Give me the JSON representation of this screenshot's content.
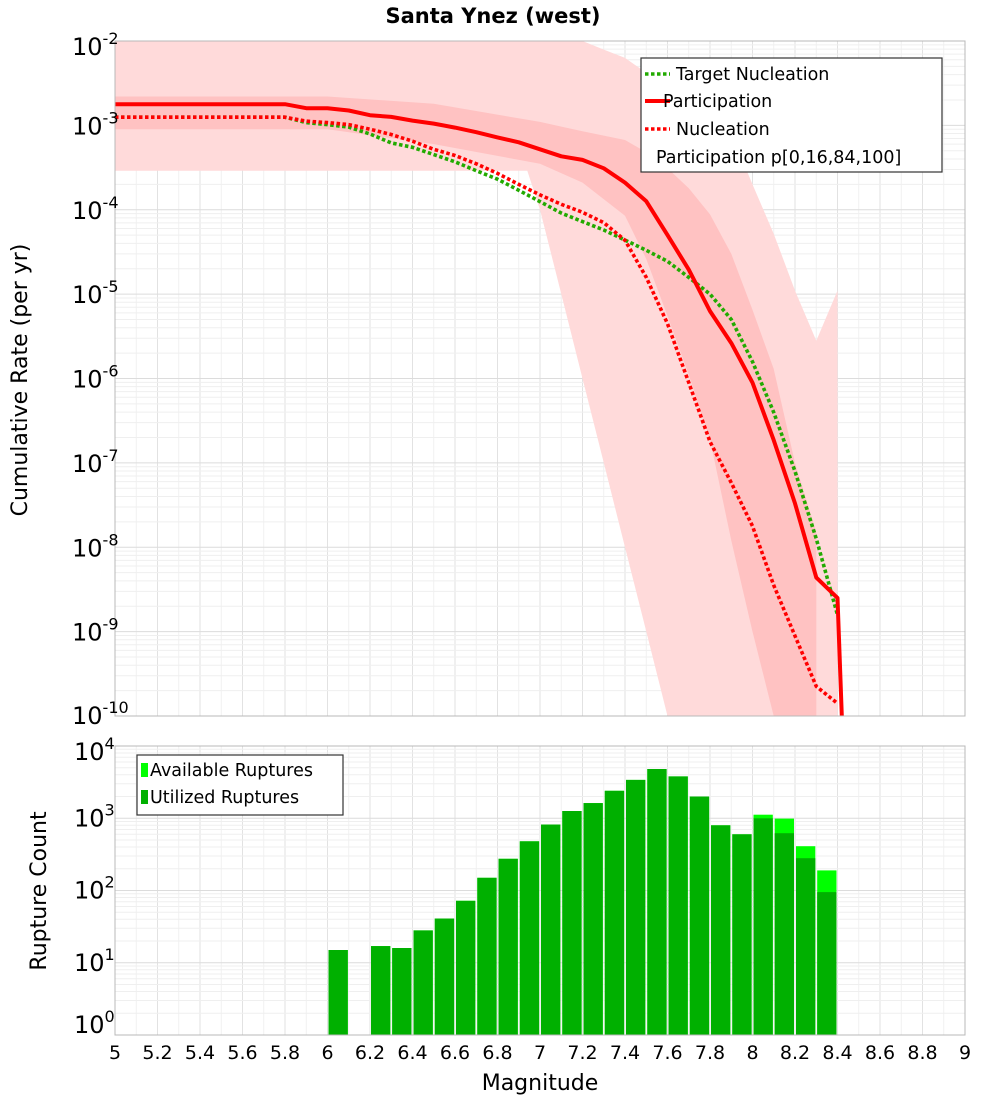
{
  "chart_data": [
    {
      "type": "line",
      "title": "Santa Ynez (west)",
      "xlabel": "",
      "ylabel": "Cumulative Rate (per yr)",
      "xlim": [
        5,
        9
      ],
      "ylim": [
        1e-10,
        0.01
      ],
      "yscale": "log",
      "grid": true,
      "legend_position": "top-right",
      "y_tick_labels": [
        {
          "base": "10",
          "exp": "-2",
          "value": 0.01
        },
        {
          "base": "10",
          "exp": "-3",
          "value": 0.001
        },
        {
          "base": "10",
          "exp": "-4",
          "value": 0.0001
        },
        {
          "base": "10",
          "exp": "-5",
          "value": 1e-05
        },
        {
          "base": "10",
          "exp": "-6",
          "value": 1e-06
        },
        {
          "base": "10",
          "exp": "-7",
          "value": 1e-07
        },
        {
          "base": "10",
          "exp": "-8",
          "value": 1e-08
        },
        {
          "base": "10",
          "exp": "-9",
          "value": 1e-09
        },
        {
          "base": "10",
          "exp": "-10",
          "value": 1e-10
        }
      ],
      "series": [
        {
          "name": "Target Nucleation",
          "color": "#22aa00",
          "style": "dotted",
          "x": [
            5.0,
            5.5,
            5.8,
            5.9,
            6.0,
            6.1,
            6.2,
            6.3,
            6.4,
            6.5,
            6.6,
            6.7,
            6.8,
            6.9,
            7.0,
            7.1,
            7.2,
            7.3,
            7.4,
            7.5,
            7.6,
            7.7,
            7.8,
            7.9,
            8.0,
            8.1,
            8.2,
            8.3,
            8.4
          ],
          "y": [
            0.00125,
            0.00125,
            0.00125,
            0.00108,
            0.00102,
            0.000955,
            0.00079,
            0.00062,
            0.00055,
            0.00045,
            0.00037,
            0.00029,
            0.00023,
            0.00017,
            0.000125,
            9.12e-05,
            7.24e-05,
            5.75e-05,
            4.37e-05,
            3.31e-05,
            2.45e-05,
            1.58e-05,
            1e-05,
            5.01e-06,
            1.58e-06,
            3.98e-07,
            7.94e-08,
            1.26e-08,
            1.58e-09
          ]
        },
        {
          "name": "Participation",
          "color": "#ff0000",
          "style": "solid",
          "x": [
            5.0,
            5.5,
            5.8,
            5.9,
            6.0,
            6.1,
            6.2,
            6.3,
            6.4,
            6.5,
            6.6,
            6.7,
            6.8,
            6.9,
            7.0,
            7.1,
            7.2,
            7.3,
            7.4,
            7.5,
            7.6,
            7.7,
            7.8,
            7.9,
            8.0,
            8.1,
            8.2,
            8.3,
            8.4,
            8.42
          ],
          "y": [
            0.00178,
            0.00178,
            0.00178,
            0.0016,
            0.0016,
            0.0015,
            0.00132,
            0.00126,
            0.00114,
            0.00105,
            0.00094,
            0.00083,
            0.00072,
            0.00063,
            0.00052,
            0.00043,
            0.00039,
            0.00031,
            0.00021,
            0.000126,
            5e-05,
            1.95e-05,
            6.3e-06,
            2.63e-06,
            8.91e-07,
            1.86e-07,
            3.31e-08,
            4.37e-09,
            2.51e-09,
            1e-10
          ]
        },
        {
          "name": "Nucleation",
          "color": "#ff0000",
          "style": "dotted",
          "x": [
            5.0,
            5.5,
            5.8,
            5.9,
            6.0,
            6.1,
            6.2,
            6.3,
            6.4,
            6.5,
            6.6,
            6.7,
            6.8,
            6.9,
            7.0,
            7.1,
            7.2,
            7.3,
            7.4,
            7.5,
            7.6,
            7.7,
            7.8,
            7.9,
            8.0,
            8.1,
            8.2,
            8.3,
            8.4
          ],
          "y": [
            0.00125,
            0.00125,
            0.00125,
            0.00112,
            0.00108,
            0.00102,
            0.0009,
            0.00078,
            0.00065,
            0.00052,
            0.00044,
            0.00035,
            0.00027,
            0.0002,
            0.00015,
            0.000116,
            9.33e-05,
            7.03e-05,
            4.35e-05,
            1.58e-05,
            4.46e-06,
            8.92e-07,
            1.78e-07,
            5.8e-08,
            1.78e-08,
            3.55e-09,
            8.91e-10,
            2.24e-10,
            1.41e-10
          ]
        }
      ],
      "bands": [
        {
          "name": "Participation p[0,16,84,100]",
          "type": "p0-p100",
          "color": "#ffdada",
          "x": [
            5.0,
            6.0,
            6.5,
            6.94,
            7.0,
            7.1,
            7.2,
            7.3,
            7.4,
            7.5,
            7.6,
            7.7,
            7.8,
            7.9,
            8.0,
            8.1,
            8.2,
            8.3,
            8.4
          ],
          "upper": [
            0.01,
            0.01,
            0.01,
            0.01,
            0.01,
            0.01,
            0.01,
            0.0079,
            0.0063,
            0.0042,
            0.0035,
            0.0025,
            0.0016,
            0.0008,
            0.0002,
            5.2e-05,
            1.1e-05,
            2.8e-06,
            1.1e-05
          ],
          "lower": [
            0.00029,
            0.00029,
            0.00029,
            0.00029,
            0.0001,
            1e-05,
            1e-06,
            1e-07,
            1e-08,
            1e-09,
            1e-10,
            1e-10,
            1e-10,
            1e-10,
            1e-10,
            1e-10,
            1e-10,
            1e-10,
            1e-10
          ]
        },
        {
          "name": "Participation p[0,16,84,100]",
          "type": "p16-p84",
          "color": "#ffc2c2",
          "x": [
            5.0,
            6.0,
            6.5,
            7.0,
            7.2,
            7.4,
            7.5,
            7.6,
            7.7,
            7.8,
            7.9,
            8.0,
            8.1,
            8.2,
            8.3
          ],
          "upper": [
            0.0022,
            0.0022,
            0.0018,
            0.0011,
            0.00085,
            0.00067,
            0.00048,
            0.00031,
            0.00018,
            8.8e-05,
            3e-05,
            6.5e-06,
            1.3e-06,
            1e-07,
            1.5e-08
          ],
          "lower": [
            0.0009,
            0.0009,
            0.0006,
            0.00035,
            0.00021,
            8.5e-05,
            2.6e-05,
            5.5e-06,
            1.1e-06,
            1.9e-07,
            1.2e-08,
            1e-09,
            1e-10,
            1e-10,
            1e-10
          ]
        }
      ],
      "legend": [
        "Target Nucleation",
        "Participation",
        "Nucleation",
        "Participation p[0,16,84,100]"
      ]
    },
    {
      "type": "bar",
      "title": "",
      "xlabel": "Magnitude",
      "ylabel": "Rupture Count",
      "xlim": [
        5,
        9
      ],
      "ylim": [
        1,
        10000
      ],
      "yscale": "log",
      "grid": true,
      "legend_position": "top-left",
      "x_tick_labels": [
        "5",
        "5.2",
        "5.4",
        "5.6",
        "5.8",
        "6",
        "6.2",
        "6.4",
        "6.6",
        "6.8",
        "7",
        "7.2",
        "7.4",
        "7.6",
        "7.8",
        "8",
        "8.2",
        "8.4",
        "8.6",
        "8.8",
        "9"
      ],
      "y_tick_labels": [
        {
          "base": "10",
          "exp": "4",
          "value": 10000
        },
        {
          "base": "10",
          "exp": "3",
          "value": 1000
        },
        {
          "base": "10",
          "exp": "2",
          "value": 100
        },
        {
          "base": "10",
          "exp": "1",
          "value": 10
        },
        {
          "base": "10",
          "exp": "0",
          "value": 1
        }
      ],
      "bin_width": 0.1,
      "x": [
        6.05,
        6.25,
        6.35,
        6.45,
        6.55,
        6.65,
        6.75,
        6.85,
        6.95,
        7.05,
        7.15,
        7.25,
        7.35,
        7.45,
        7.55,
        7.65,
        7.75,
        7.85,
        7.95,
        8.05,
        8.15,
        8.25,
        8.35
      ],
      "series": [
        {
          "name": "Available Ruptures",
          "color": "#00ff00",
          "values": [
            15,
            17,
            16,
            28,
            41,
            72,
            150,
            275,
            480,
            820,
            1260,
            1620,
            2400,
            3400,
            4800,
            3800,
            2000,
            800,
            600,
            1120,
            990,
            410,
            190
          ]
        },
        {
          "name": "Utilized Ruptures",
          "color": "#00b000",
          "values": [
            15,
            17,
            16,
            28,
            41,
            72,
            150,
            275,
            480,
            820,
            1260,
            1620,
            2400,
            3400,
            4800,
            3800,
            2000,
            800,
            600,
            1000,
            620,
            280,
            95
          ]
        }
      ],
      "legend": [
        "Available Ruptures",
        "Utilized Ruptures"
      ]
    }
  ]
}
